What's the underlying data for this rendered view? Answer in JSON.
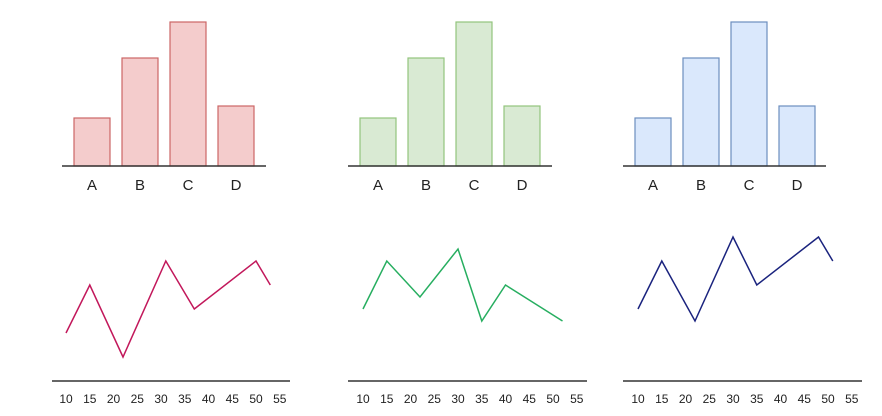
{
  "chart_data": [
    {
      "type": "bar",
      "categories": [
        "A",
        "B",
        "C",
        "D"
      ],
      "values": [
        2,
        4.5,
        6,
        2.5
      ],
      "ylim": [
        0,
        6
      ],
      "fill": "#f4cccc",
      "stroke": "#cc6666"
    },
    {
      "type": "bar",
      "categories": [
        "A",
        "B",
        "C",
        "D"
      ],
      "values": [
        2,
        4.5,
        6,
        2.5
      ],
      "ylim": [
        0,
        6
      ],
      "fill": "#d9ead3",
      "stroke": "#93c47d"
    },
    {
      "type": "bar",
      "categories": [
        "A",
        "B",
        "C",
        "D"
      ],
      "values": [
        2,
        4.5,
        6,
        2.5
      ],
      "ylim": [
        0,
        6
      ],
      "fill": "#dae8fc",
      "stroke": "#6c8ebf"
    },
    {
      "type": "line",
      "x": [
        10,
        15,
        22,
        31,
        37,
        50,
        53
      ],
      "y": [
        2,
        4,
        1,
        5,
        3,
        5,
        4
      ],
      "xlim": [
        10,
        55
      ],
      "ylim": [
        0,
        7
      ],
      "xticks": [
        "10",
        "15",
        "20",
        "25",
        "30",
        "35",
        "40",
        "45",
        "50",
        "55"
      ],
      "color": "#c2185b"
    },
    {
      "type": "line",
      "x": [
        10,
        15,
        22,
        30,
        35,
        40,
        52
      ],
      "y": [
        3,
        5,
        3.5,
        5.5,
        2.5,
        4,
        2.5
      ],
      "xlim": [
        10,
        55
      ],
      "ylim": [
        0,
        7
      ],
      "xticks": [
        "10",
        "15",
        "20",
        "25",
        "30",
        "35",
        "40",
        "45",
        "50",
        "55"
      ],
      "color": "#27ae60"
    },
    {
      "type": "line",
      "x": [
        10,
        15,
        22,
        30,
        35,
        48,
        51
      ],
      "y": [
        3,
        5,
        2.5,
        6,
        4,
        6,
        5
      ],
      "xlim": [
        10,
        55
      ],
      "ylim": [
        0,
        7
      ],
      "xticks": [
        "10",
        "15",
        "20",
        "25",
        "30",
        "35",
        "40",
        "45",
        "50",
        "55"
      ],
      "color": "#1a237e"
    }
  ]
}
